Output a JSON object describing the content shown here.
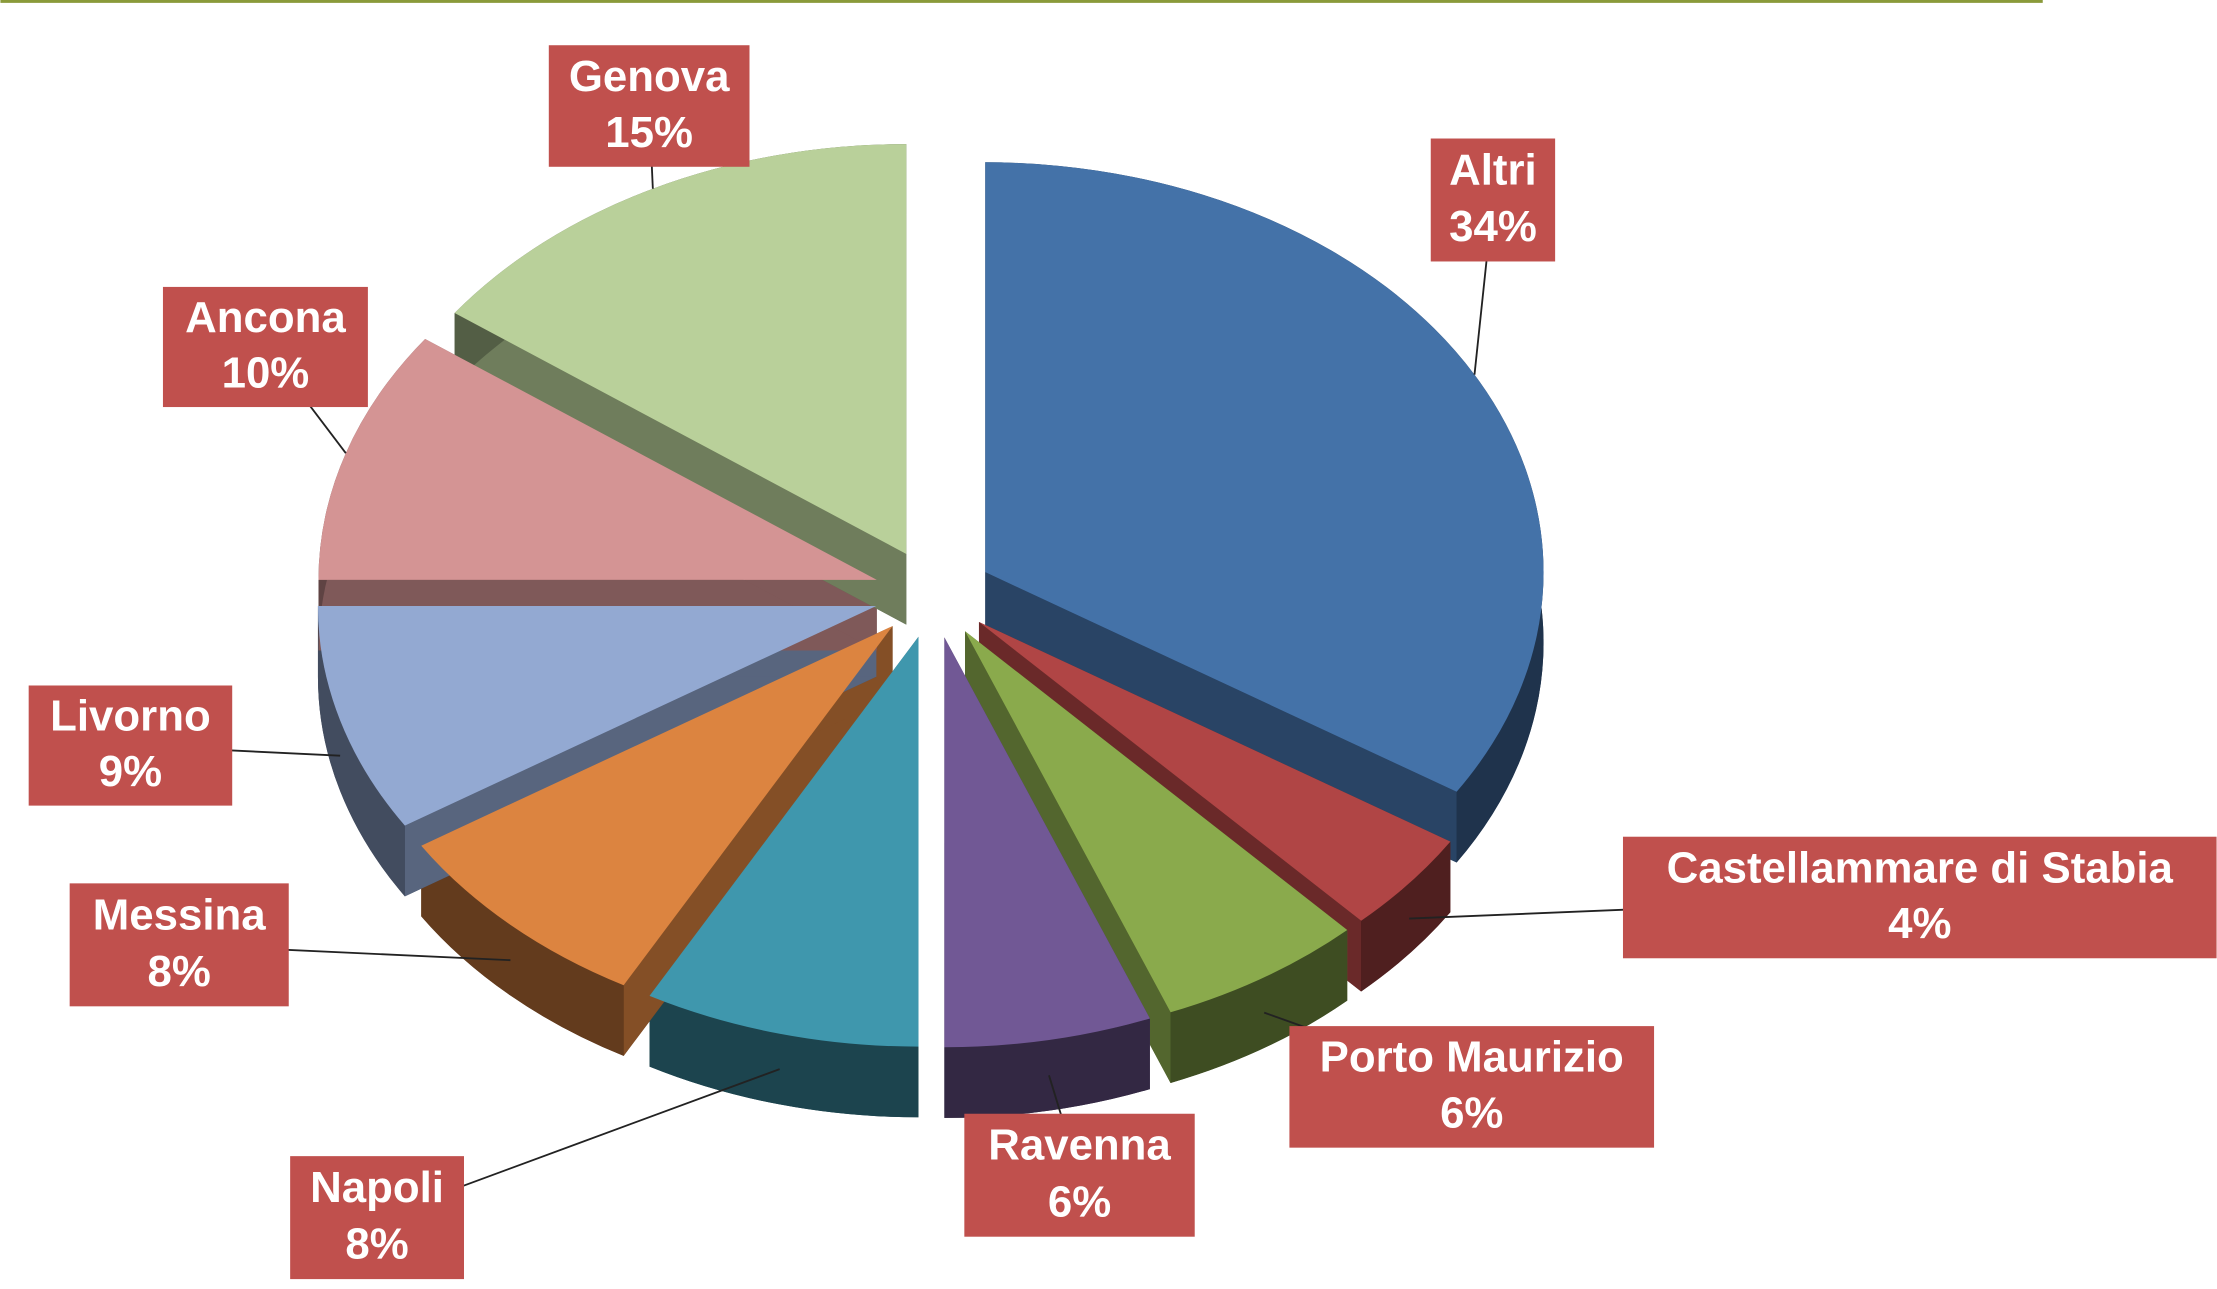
{
  "chart_data": {
    "type": "pie",
    "categories": [
      "Altri",
      "Castellammare di Stabia",
      "Porto Maurizio",
      "Ravenna",
      "Napoli",
      "Messina",
      "Livorno",
      "Ancona",
      "Genova"
    ],
    "values": [
      34,
      4,
      6,
      6,
      8,
      8,
      9,
      10,
      15
    ],
    "value_labels": [
      "34%",
      "4%",
      "6%",
      "6%",
      "8%",
      "8%",
      "9%",
      "10%",
      "15%"
    ],
    "colors": [
      "#4472a8",
      "#b04545",
      "#8aaa4c",
      "#715895",
      "#3f97ad",
      "#dc8440",
      "#93a9d2",
      "#d49494",
      "#b9d09a"
    ],
    "label_color": "#c0504d"
  }
}
